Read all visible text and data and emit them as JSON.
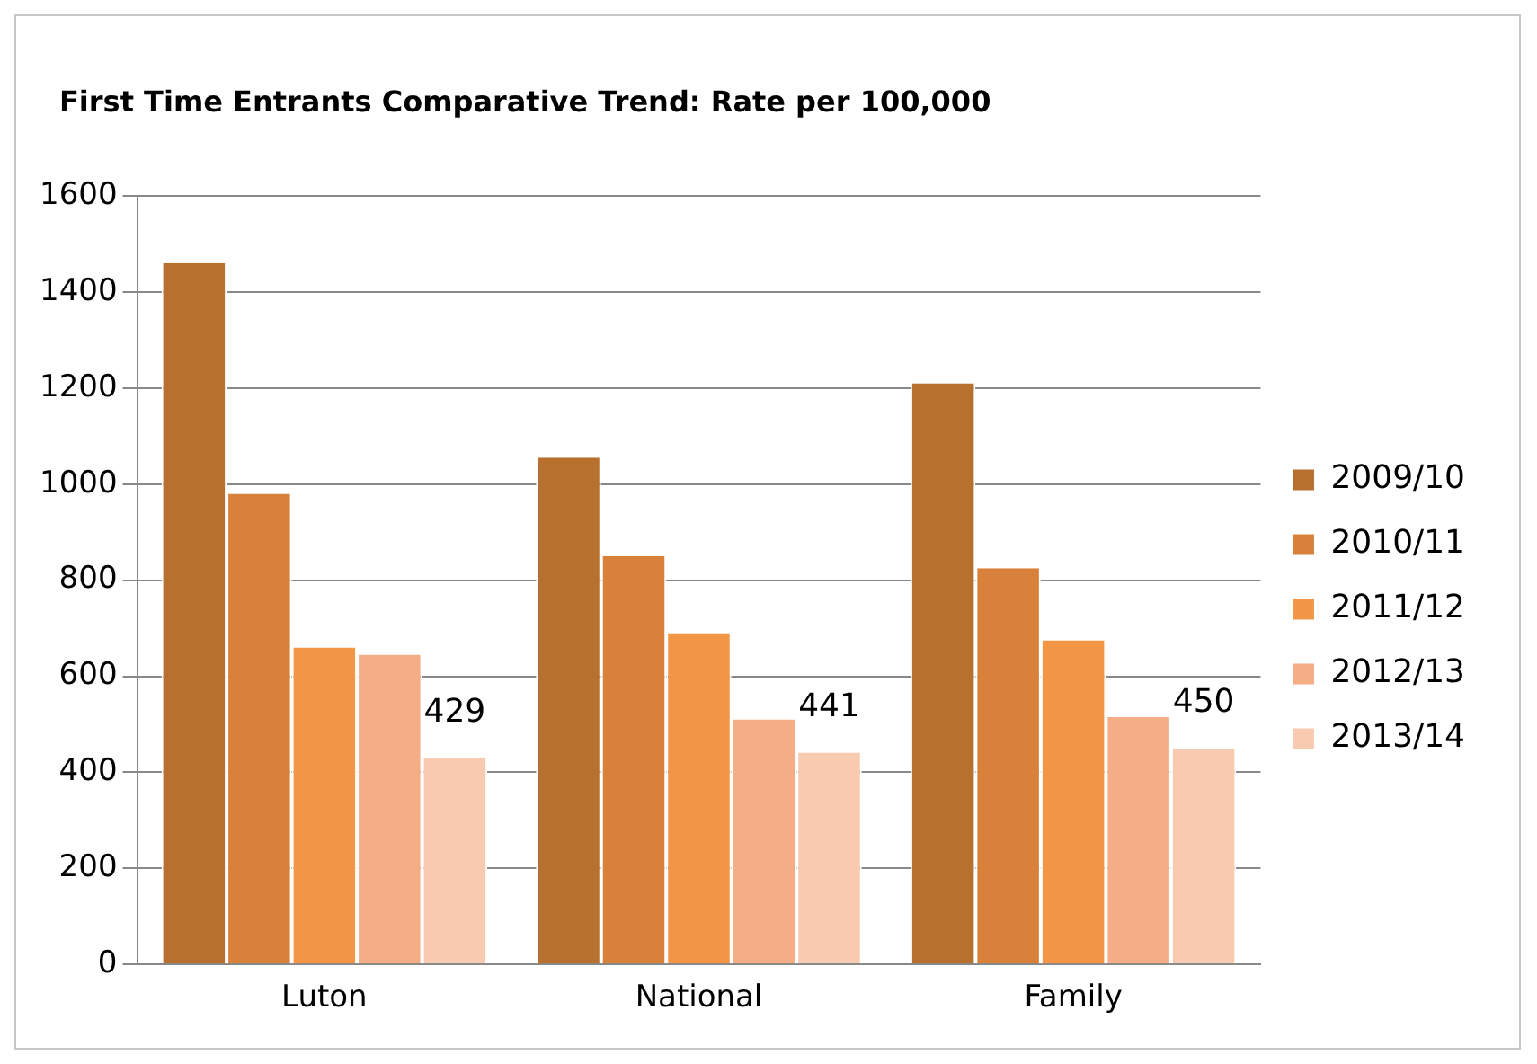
{
  "chart_data": {
    "type": "bar",
    "title": "First Time Entrants Comparative Trend: Rate per 100,000",
    "categories": [
      "Luton",
      "National",
      "Family"
    ],
    "series": [
      {
        "name": "2009/10",
        "color": "#b8702f",
        "values": [
          1460,
          1055,
          1210
        ]
      },
      {
        "name": "2010/11",
        "color": "#d8813a",
        "values": [
          980,
          850,
          825
        ]
      },
      {
        "name": "2011/12",
        "color": "#f29545",
        "values": [
          660,
          690,
          675
        ]
      },
      {
        "name": "2012/13",
        "color": "#f5ad85",
        "values": [
          645,
          510,
          515
        ]
      },
      {
        "name": "2013/14",
        "color": "#f8cbb1",
        "values": [
          429,
          441,
          450
        ],
        "value_labels": [
          "429",
          "441",
          "450"
        ]
      }
    ],
    "ylim": [
      0,
      1600
    ],
    "yticks": [
      0,
      200,
      400,
      600,
      800,
      1000,
      1200,
      1400,
      1600
    ],
    "grid": "y",
    "legend": "right"
  }
}
